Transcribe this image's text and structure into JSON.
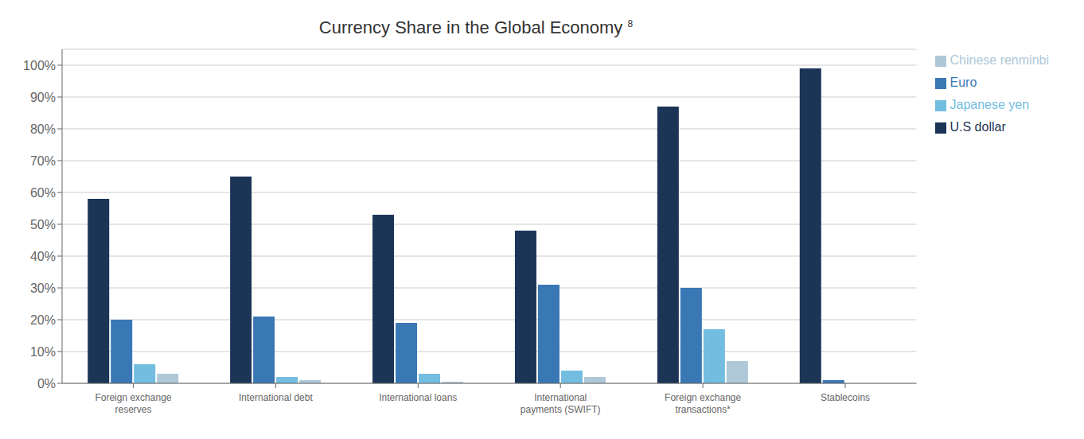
{
  "chart_data": {
    "type": "bar",
    "title": "Currency Share in the Global Economy ",
    "annotations": [
      "8"
    ],
    "categories": [
      "Foreign exchange\nreserves",
      "International debt",
      "International loans",
      "International\npayments (SWIFT)",
      "Foreign exchange\ntransactions*",
      "Stablecoins"
    ],
    "series": [
      {
        "name": "U.S dollar",
        "color": "#1c3557",
        "values": [
          58,
          65,
          53,
          48,
          87,
          99
        ]
      },
      {
        "name": "Euro",
        "color": "#3a78b5",
        "values": [
          20,
          21,
          19,
          31,
          30,
          1
        ]
      },
      {
        "name": "Japanese yen",
        "color": "#72bde0",
        "values": [
          6,
          2,
          3,
          4,
          17,
          0
        ]
      },
      {
        "name": "Chinese renminbi",
        "color": "#aec8d8",
        "values": [
          3,
          1,
          0.5,
          2,
          7,
          0
        ]
      }
    ],
    "ylim": [
      0,
      105
    ],
    "yticks": [
      {
        "value": 0,
        "label": "0%"
      },
      {
        "value": 10,
        "label": "10%"
      },
      {
        "value": 20,
        "label": "20%"
      },
      {
        "value": 30,
        "label": "30%"
      },
      {
        "value": 40,
        "label": "40%"
      },
      {
        "value": 50,
        "label": "50%"
      },
      {
        "value": 60,
        "label": "60%"
      },
      {
        "value": 70,
        "label": "70%"
      },
      {
        "value": 80,
        "label": "80%"
      },
      {
        "value": 90,
        "label": "90%"
      },
      {
        "value": 100,
        "label": "100%"
      }
    ],
    "grid": true,
    "legend": "right"
  }
}
